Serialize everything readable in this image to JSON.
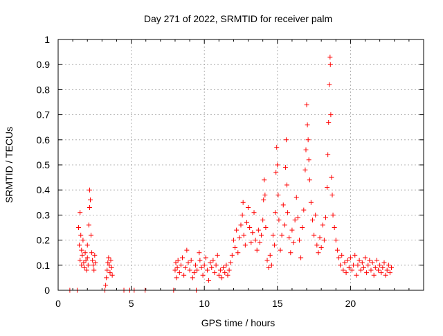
{
  "chart_data": {
    "type": "scatter",
    "title": "Day 271 of 2022, SRMTID for receiver palm",
    "xlabel": "GPS time / hours",
    "ylabel": "SRMTID / TECUs",
    "xlim": [
      0,
      25
    ],
    "ylim": [
      0,
      1
    ],
    "xticks": [
      0,
      5,
      10,
      15,
      20
    ],
    "xtick_labels": [
      "0",
      "5",
      "10",
      "15",
      "20"
    ],
    "yticks": [
      0,
      0.1,
      0.2,
      0.3,
      0.4,
      0.5,
      0.6,
      0.7,
      0.8,
      0.9,
      1
    ],
    "ytick_labels": [
      "0",
      "0.1",
      "0.2",
      "0.3",
      "0.4",
      "0.5",
      "0.6",
      "0.7",
      "0.8",
      "0.9",
      "1"
    ],
    "grid": true,
    "marker": "+",
    "series": [
      {
        "name": "SRMTID",
        "color": "#ff0000",
        "points": [
          [
            0.8,
            0
          ],
          [
            1.3,
            0
          ],
          [
            1.4,
            0.25
          ],
          [
            1.45,
            0.18
          ],
          [
            1.5,
            0.12
          ],
          [
            1.5,
            0.31
          ],
          [
            1.55,
            0.22
          ],
          [
            1.6,
            0.16
          ],
          [
            1.6,
            0.1
          ],
          [
            1.65,
            0.14
          ],
          [
            1.7,
            0.2
          ],
          [
            1.75,
            0.11
          ],
          [
            1.8,
            0.09
          ],
          [
            1.85,
            0.15
          ],
          [
            1.9,
            0.12
          ],
          [
            1.95,
            0.08
          ],
          [
            2.0,
            0.13
          ],
          [
            2.0,
            0.18
          ],
          [
            2.05,
            0.1
          ],
          [
            2.1,
            0.26
          ],
          [
            2.15,
            0.33
          ],
          [
            2.15,
            0.4
          ],
          [
            2.2,
            0.36
          ],
          [
            2.25,
            0.22
          ],
          [
            2.3,
            0.15
          ],
          [
            2.35,
            0.12
          ],
          [
            2.4,
            0.1
          ],
          [
            2.45,
            0.08
          ],
          [
            2.5,
            0.14
          ],
          [
            2.55,
            0.11
          ],
          [
            3.2,
            0
          ],
          [
            3.25,
            0.02
          ],
          [
            3.3,
            0.05
          ],
          [
            3.35,
            0.08
          ],
          [
            3.4,
            0.11
          ],
          [
            3.45,
            0.13
          ],
          [
            3.5,
            0.1
          ],
          [
            3.55,
            0.07
          ],
          [
            3.6,
            0.12
          ],
          [
            3.65,
            0.09
          ],
          [
            3.7,
            0.06
          ],
          [
            4.5,
            0
          ],
          [
            4.9,
            0
          ],
          [
            5.2,
            0
          ],
          [
            5.95,
            0
          ],
          [
            7.9,
            0
          ],
          [
            9.45,
            0
          ],
          [
            8.0,
            0.08
          ],
          [
            8.05,
            0.11
          ],
          [
            8.1,
            0.05
          ],
          [
            8.15,
            0.09
          ],
          [
            8.2,
            0.12
          ],
          [
            8.3,
            0.07
          ],
          [
            8.4,
            0.1
          ],
          [
            8.5,
            0.13
          ],
          [
            8.6,
            0.06
          ],
          [
            8.7,
            0.09
          ],
          [
            8.8,
            0.16
          ],
          [
            8.9,
            0.11
          ],
          [
            9.0,
            0.08
          ],
          [
            9.1,
            0.12
          ],
          [
            9.2,
            0.05
          ],
          [
            9.3,
            0.07
          ],
          [
            9.4,
            0.1
          ],
          [
            9.5,
            0.08
          ],
          [
            9.65,
            0.15
          ],
          [
            9.7,
            0.12
          ],
          [
            9.8,
            0.09
          ],
          [
            9.9,
            0.06
          ],
          [
            10.0,
            0.1
          ],
          [
            10.1,
            0.13
          ],
          [
            10.2,
            0.08
          ],
          [
            10.3,
            0.04
          ],
          [
            10.4,
            0.11
          ],
          [
            10.5,
            0.09
          ],
          [
            10.6,
            0.12
          ],
          [
            10.7,
            0.07
          ],
          [
            10.8,
            0.1
          ],
          [
            10.9,
            0.14
          ],
          [
            11.0,
            0.06
          ],
          [
            11.1,
            0.08
          ],
          [
            11.2,
            0.05
          ],
          [
            11.3,
            0.09
          ],
          [
            11.4,
            0.07
          ],
          [
            11.5,
            0.1
          ],
          [
            11.6,
            0.06
          ],
          [
            11.7,
            0.08
          ],
          [
            11.8,
            0.11
          ],
          [
            11.9,
            0.14
          ],
          [
            12.0,
            0.2
          ],
          [
            12.1,
            0.17
          ],
          [
            12.2,
            0.24
          ],
          [
            12.3,
            0.15
          ],
          [
            12.4,
            0.21
          ],
          [
            12.5,
            0.26
          ],
          [
            12.6,
            0.3
          ],
          [
            12.65,
            0.35
          ],
          [
            12.7,
            0.22
          ],
          [
            12.8,
            0.18
          ],
          [
            12.9,
            0.27
          ],
          [
            13.0,
            0.33
          ],
          [
            13.1,
            0.25
          ],
          [
            13.2,
            0.19
          ],
          [
            13.3,
            0.23
          ],
          [
            13.4,
            0.31
          ],
          [
            13.5,
            0.2
          ],
          [
            13.6,
            0.16
          ],
          [
            13.7,
            0.24
          ],
          [
            13.8,
            0.19
          ],
          [
            13.9,
            0.22
          ],
          [
            14.0,
            0.28
          ],
          [
            14.05,
            0.36
          ],
          [
            14.1,
            0.44
          ],
          [
            14.15,
            0.38
          ],
          [
            14.2,
            0.25
          ],
          [
            14.3,
            0.12
          ],
          [
            14.4,
            0.09
          ],
          [
            14.5,
            0.14
          ],
          [
            14.6,
            0.1
          ],
          [
            14.7,
            0.22
          ],
          [
            14.8,
            0.18
          ],
          [
            14.85,
            0.31
          ],
          [
            14.9,
            0.47
          ],
          [
            14.95,
            0.57
          ],
          [
            15.0,
            0.5
          ],
          [
            15.05,
            0.38
          ],
          [
            15.1,
            0.28
          ],
          [
            15.2,
            0.16
          ],
          [
            15.3,
            0.22
          ],
          [
            15.4,
            0.34
          ],
          [
            15.5,
            0.26
          ],
          [
            15.55,
            0.49
          ],
          [
            15.6,
            0.6
          ],
          [
            15.65,
            0.42
          ],
          [
            15.7,
            0.31
          ],
          [
            15.8,
            0.21
          ],
          [
            15.9,
            0.15
          ],
          [
            16.0,
            0.24
          ],
          [
            16.1,
            0.19
          ],
          [
            16.2,
            0.28
          ],
          [
            16.3,
            0.37
          ],
          [
            16.4,
            0.29
          ],
          [
            16.5,
            0.2
          ],
          [
            16.6,
            0.13
          ],
          [
            16.7,
            0.25
          ],
          [
            16.8,
            0.32
          ],
          [
            16.9,
            0.48
          ],
          [
            16.95,
            0.56
          ],
          [
            17.0,
            0.74
          ],
          [
            17.05,
            0.66
          ],
          [
            17.1,
            0.6
          ],
          [
            17.15,
            0.52
          ],
          [
            17.2,
            0.44
          ],
          [
            17.3,
            0.35
          ],
          [
            17.4,
            0.28
          ],
          [
            17.5,
            0.22
          ],
          [
            17.6,
            0.3
          ],
          [
            17.7,
            0.18
          ],
          [
            17.8,
            0.15
          ],
          [
            17.9,
            0.21
          ],
          [
            18.0,
            0.17
          ],
          [
            18.1,
            0.26
          ],
          [
            18.2,
            0.2
          ],
          [
            18.3,
            0.29
          ],
          [
            18.4,
            0.41
          ],
          [
            18.45,
            0.54
          ],
          [
            18.5,
            0.67
          ],
          [
            18.55,
            0.82
          ],
          [
            18.6,
            0.93
          ],
          [
            18.62,
            0.9
          ],
          [
            18.65,
            0.7
          ],
          [
            18.7,
            0.45
          ],
          [
            18.75,
            0.38
          ],
          [
            18.8,
            0.3
          ],
          [
            18.9,
            0.25
          ],
          [
            19.0,
            0.2
          ],
          [
            19.1,
            0.16
          ],
          [
            19.2,
            0.13
          ],
          [
            19.3,
            0.1
          ],
          [
            19.4,
            0.14
          ],
          [
            19.5,
            0.08
          ],
          [
            19.6,
            0.11
          ],
          [
            19.7,
            0.07
          ],
          [
            19.8,
            0.12
          ],
          [
            19.9,
            0.09
          ],
          [
            20.0,
            0.13
          ],
          [
            20.1,
            0.08
          ],
          [
            20.2,
            0.1
          ],
          [
            20.3,
            0.14
          ],
          [
            20.4,
            0.06
          ],
          [
            20.5,
            0.1
          ],
          [
            20.6,
            0.12
          ],
          [
            20.7,
            0.08
          ],
          [
            20.8,
            0.11
          ],
          [
            20.9,
            0.09
          ],
          [
            21.0,
            0.13
          ],
          [
            21.1,
            0.07
          ],
          [
            21.2,
            0.1
          ],
          [
            21.3,
            0.12
          ],
          [
            21.4,
            0.08
          ],
          [
            21.5,
            0.11
          ],
          [
            21.6,
            0.06
          ],
          [
            21.7,
            0.09
          ],
          [
            21.8,
            0.12
          ],
          [
            21.9,
            0.08
          ],
          [
            22.0,
            0.1
          ],
          [
            22.1,
            0.07
          ],
          [
            22.2,
            0.09
          ],
          [
            22.3,
            0.11
          ],
          [
            22.4,
            0.06
          ],
          [
            22.5,
            0.08
          ],
          [
            22.6,
            0.1
          ],
          [
            22.7,
            0.07
          ],
          [
            22.8,
            0.09
          ]
        ]
      }
    ]
  }
}
